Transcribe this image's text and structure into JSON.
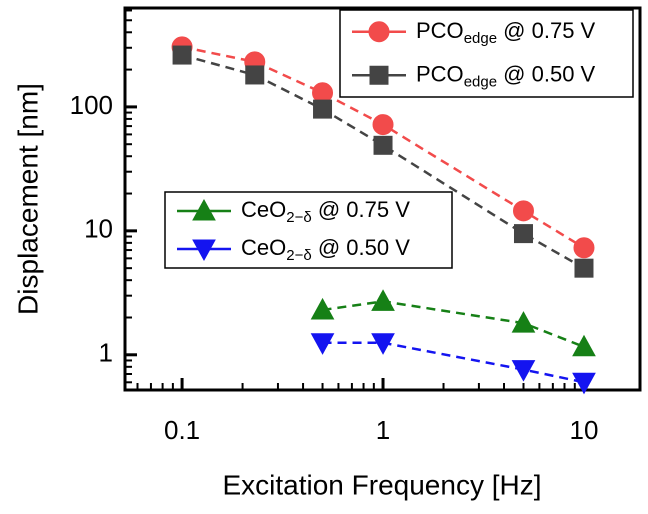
{
  "chart_data": {
    "type": "line",
    "x_label": "Excitation Frequency [Hz]",
    "y_label": "Displacement [nm]",
    "xscale": "log",
    "yscale": "log",
    "xlim": [
      0.052,
      19
    ],
    "ylim": [
      0.52,
      628
    ],
    "xticks": [
      0.1,
      1,
      10
    ],
    "yticks": [
      1,
      10,
      100
    ],
    "xminorticks": [
      0.06,
      0.07,
      0.08,
      0.09,
      0.2,
      0.3,
      0.4,
      0.5,
      0.6,
      0.7,
      0.8,
      0.9,
      2,
      3,
      4,
      5,
      6,
      7,
      8,
      9
    ],
    "yminorticks": [
      0.6,
      0.7,
      0.8,
      0.9,
      2,
      3,
      4,
      5,
      6,
      7,
      8,
      9,
      20,
      30,
      40,
      50,
      60,
      70,
      80,
      90,
      200,
      300,
      400,
      500,
      600
    ],
    "legends": [
      {
        "position": "upper right",
        "series": [
          0,
          1
        ]
      },
      {
        "position": "center left",
        "series": [
          2,
          3
        ]
      }
    ],
    "series": [
      {
        "name": "PCOedge @ 0.75 V",
        "subscript": "edge",
        "marker": "circle",
        "color": "#f24b4b",
        "x": [
          0.1,
          0.23,
          0.5,
          1,
          5,
          10
        ],
        "values": [
          305,
          231,
          130,
          72,
          14.5,
          7.3
        ]
      },
      {
        "name": "PCOedge @ 0.50 V",
        "subscript": "edge",
        "marker": "square",
        "color": "#444444",
        "x": [
          0.1,
          0.23,
          0.5,
          1,
          5,
          10
        ],
        "values": [
          262,
          181,
          96,
          49,
          9.5,
          5.0
        ]
      },
      {
        "name": "CeO2−δ @ 0.75 V",
        "subscript": "2−δ",
        "marker": "triangle-up",
        "color": "#168016",
        "x": [
          0.5,
          1,
          5,
          10
        ],
        "values": [
          2.3,
          2.7,
          1.8,
          1.16
        ]
      },
      {
        "name": "CeO2−δ @ 0.50 V",
        "subscript": "2−δ",
        "marker": "triangle-down",
        "color": "#1414f0",
        "x": [
          0.5,
          1,
          5,
          10
        ],
        "values": [
          1.25,
          1.25,
          0.76,
          0.6
        ]
      }
    ]
  }
}
